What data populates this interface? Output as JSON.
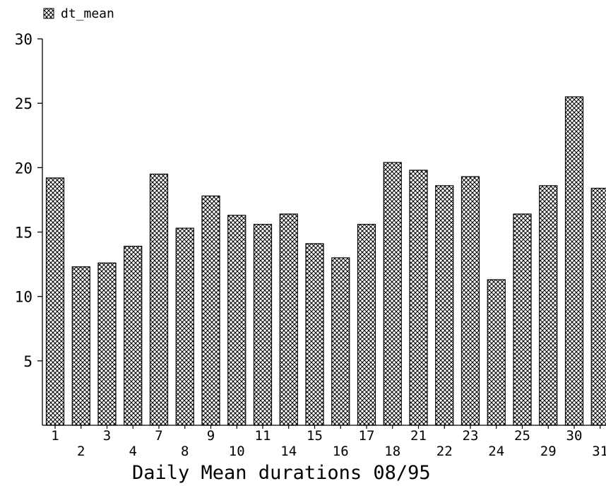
{
  "chart_data": {
    "type": "bar",
    "title": "",
    "xlabel": "Daily Mean durations 08/95",
    "ylabel": "",
    "ylim": [
      0,
      30
    ],
    "yticks": [
      5,
      10,
      15,
      20,
      25,
      30
    ],
    "legend": {
      "position": "top-left",
      "label": "dt_mean"
    },
    "grid": false,
    "pattern": "crosshatch",
    "categories": [
      "1",
      "2",
      "3",
      "4",
      "7",
      "8",
      "9",
      "10",
      "11",
      "14",
      "15",
      "16",
      "17",
      "18",
      "21",
      "22",
      "23",
      "24",
      "25",
      "29",
      "30",
      "31"
    ],
    "series": [
      {
        "name": "dt_mean",
        "values": [
          19.2,
          12.3,
          12.6,
          13.9,
          19.5,
          15.3,
          17.8,
          16.3,
          15.6,
          16.4,
          14.1,
          13.0,
          15.6,
          20.4,
          19.8,
          18.6,
          19.3,
          11.3,
          16.4,
          18.6,
          25.5,
          18.4
        ]
      }
    ]
  }
}
